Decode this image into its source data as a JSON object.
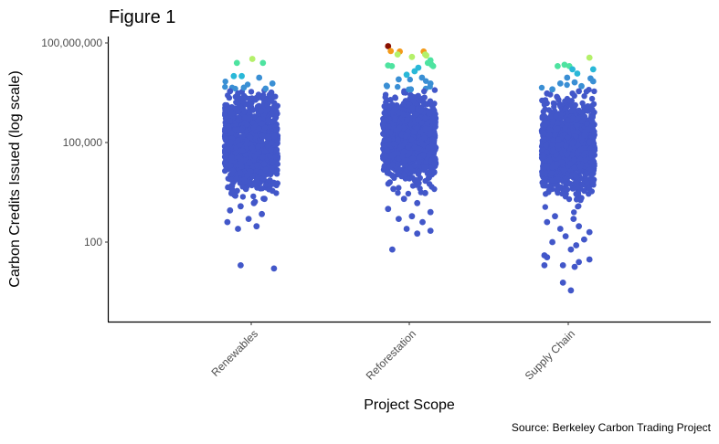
{
  "chart_data": {
    "type": "scatter",
    "title": "Figure 1",
    "xlabel": "Project Scope",
    "ylabel": "Carbon Credits Issued (log scale)",
    "caption": "Source: Berkeley Carbon Trading Project",
    "y_scale": "log10",
    "ylim": [
      1,
      200000000
    ],
    "y_ticks": [
      {
        "value": 100,
        "label": "100"
      },
      {
        "value": 100000,
        "label": "100,000"
      },
      {
        "value": 100000000,
        "label": "100,000,000"
      }
    ],
    "categories": [
      "Renewables",
      "Reforestation",
      "Supply Chain"
    ],
    "grid": false,
    "legend": "none",
    "color_scale": {
      "low": "#4257c9",
      "mid_low": "#29b8d8",
      "mid": "#4ee3a0",
      "mid_high": "#b4f06a",
      "high_warm": "#f39a1a",
      "top": "#8a1000"
    },
    "groups": [
      {
        "category": "Renewables",
        "core_range_log10": [
          3.0,
          7.0
        ],
        "points": [
          {
            "y": 33000000,
            "j": 0.02
          },
          {
            "y": 25000000,
            "j": 0.22
          },
          {
            "y": 25000000,
            "j": -0.27
          },
          {
            "y": 10000000,
            "j": -0.33
          },
          {
            "y": 10000000,
            "j": -0.18
          },
          {
            "y": 9000000,
            "j": 0.15
          },
          {
            "y": 6000000,
            "j": 0.4
          },
          {
            "y": 4500000,
            "j": -0.14
          },
          {
            "y": 4200000,
            "j": 0.27
          },
          {
            "y": 3500000,
            "j": -0.4
          },
          {
            "y": 3200000,
            "j": 0.38
          },
          {
            "y": 3000000,
            "j": -0.25
          },
          {
            "y": 2200000,
            "j": 0.1
          },
          {
            "y": 1800000,
            "j": 0.36
          },
          {
            "y": 20000,
            "j": -0.4
          },
          {
            "y": 14000,
            "j": -0.35
          },
          {
            "y": 8000,
            "j": -0.28
          },
          {
            "y": 7000,
            "j": 0.1
          },
          {
            "y": 5000,
            "j": 0.35
          },
          {
            "y": 4000,
            "j": -0.1
          },
          {
            "y": 3500,
            "j": 0.4
          },
          {
            "y": 2500,
            "j": -0.3
          },
          {
            "y": 2000,
            "j": 0.25
          },
          {
            "y": 1500,
            "j": 0.05
          },
          {
            "y": 1200,
            "j": -0.2
          },
          {
            "y": 900,
            "j": -0.4
          },
          {
            "y": 700,
            "j": 0.2
          },
          {
            "y": 500,
            "j": -0.05
          },
          {
            "y": 400,
            "j": -0.45
          },
          {
            "y": 300,
            "j": 0.1
          },
          {
            "y": 250,
            "j": -0.25
          },
          {
            "y": 20,
            "j": -0.2
          },
          {
            "y": 16,
            "j": 0.43
          }
        ]
      },
      {
        "category": "Reforestation",
        "core_range_log10": [
          3.3,
          7.0
        ],
        "points": [
          {
            "y": 80000000,
            "j": -0.4
          },
          {
            "y": 57000000,
            "j": -0.35
          },
          {
            "y": 55000000,
            "j": -0.18
          },
          {
            "y": 45000000,
            "j": -0.22
          },
          {
            "y": 55000000,
            "j": 0.27
          },
          {
            "y": 45000000,
            "j": 0.3
          },
          {
            "y": 42000000,
            "j": 0.32
          },
          {
            "y": 38000000,
            "j": 0.05
          },
          {
            "y": 30000000,
            "j": 0.4
          },
          {
            "y": 25000000,
            "j": 0.35
          },
          {
            "y": 22000000,
            "j": 0.42
          },
          {
            "y": 21000000,
            "j": -0.4
          },
          {
            "y": 20000000,
            "j": -0.33
          },
          {
            "y": 20000000,
            "j": 0.45
          },
          {
            "y": 18000000,
            "j": 0.17
          },
          {
            "y": 14000000,
            "j": 0.1
          },
          {
            "y": 11000000,
            "j": -0.05
          },
          {
            "y": 9000000,
            "j": 0.24
          },
          {
            "y": 8000000,
            "j": -0.2
          },
          {
            "y": 6000000,
            "j": 0.4
          },
          {
            "y": 5000000,
            "j": -0.42
          },
          {
            "y": 4000000,
            "j": 0.03
          },
          {
            "y": 4000,
            "j": -0.3
          },
          {
            "y": 3000,
            "j": 0.3
          },
          {
            "y": 2000,
            "j": -0.1
          },
          {
            "y": 1500,
            "j": 0.15
          },
          {
            "y": 1000,
            "j": -0.4
          },
          {
            "y": 800,
            "j": 0.4
          },
          {
            "y": 600,
            "j": 0.05
          },
          {
            "y": 500,
            "j": -0.2
          },
          {
            "y": 400,
            "j": 0.25
          },
          {
            "y": 250,
            "j": -0.05
          },
          {
            "y": 220,
            "j": 0.4
          },
          {
            "y": 180,
            "j": 0.15
          },
          {
            "y": 60,
            "j": -0.32
          }
        ]
      },
      {
        "category": "Supply Chain",
        "core_range_log10": [
          2.8,
          6.9
        ],
        "points": [
          {
            "y": 36000000,
            "j": 0.4
          },
          {
            "y": 22000000,
            "j": -0.07
          },
          {
            "y": 20000000,
            "j": -0.2
          },
          {
            "y": 20000000,
            "j": 0.02
          },
          {
            "y": 16000000,
            "j": 0.08
          },
          {
            "y": 16000000,
            "j": 0.47
          },
          {
            "y": 12000000,
            "j": 0.17
          },
          {
            "y": 9000000,
            "j": -0.02
          },
          {
            "y": 8500000,
            "j": 0.42
          },
          {
            "y": 7000000,
            "j": 0.47
          },
          {
            "y": 6500000,
            "j": 0.12
          },
          {
            "y": 6000000,
            "j": -0.15
          },
          {
            "y": 5000000,
            "j": 0.25
          },
          {
            "y": 4000000,
            "j": -0.3
          },
          {
            "y": 3500000,
            "j": 0.2
          },
          {
            "y": 3000000,
            "j": -0.4
          },
          {
            "y": 600,
            "j": -0.25
          },
          {
            "y": 500,
            "j": 0.1
          },
          {
            "y": 400,
            "j": -0.4
          },
          {
            "y": 300,
            "j": 0.2
          },
          {
            "y": 250,
            "j": -0.15
          },
          {
            "y": 200,
            "j": 0.4
          },
          {
            "y": 150,
            "j": -0.05
          },
          {
            "y": 120,
            "j": 0.3
          },
          {
            "y": 100,
            "j": -0.3
          },
          {
            "y": 80,
            "j": 0.15
          },
          {
            "y": 60,
            "j": 0.05
          },
          {
            "y": 40,
            "j": -0.45
          },
          {
            "y": 35,
            "j": -0.4
          },
          {
            "y": 30,
            "j": 0.4
          },
          {
            "y": 25,
            "j": 0.2
          },
          {
            "y": 20,
            "j": -0.45
          },
          {
            "y": 20,
            "j": -0.1
          },
          {
            "y": 18,
            "j": 0.12
          },
          {
            "y": 6,
            "j": -0.1
          },
          {
            "y": 3.5,
            "j": 0.05
          }
        ]
      }
    ]
  }
}
